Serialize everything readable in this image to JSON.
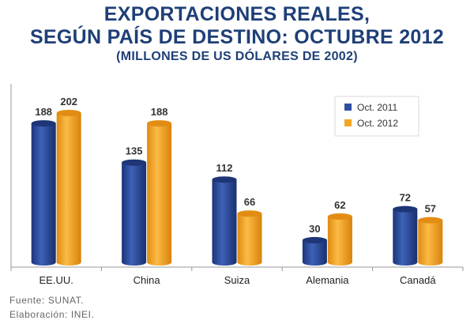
{
  "title_lines": [
    "EXPORTACIONES REALES,",
    "SEGÚN PAÍS DE DESTINO: OCTUBRE 2012"
  ],
  "subtitle": "(MILLONES DE US DÓLARES DE 2002)",
  "footnotes": {
    "source": "Fuente: SUNAT.",
    "prepared_by": "Elaboración: INEI."
  },
  "colors": {
    "title": "#1e3f77",
    "series_2011": "#2f4fa0",
    "series_2012": "#f4a621",
    "axis": "#999999"
  },
  "chart_data": {
    "type": "bar",
    "title": "EXPORTACIONES REALES, SEGÚN PAÍS DE DESTINO: OCTUBRE 2012",
    "subtitle": "(MILLONES DE US DÓLARES DE 2002)",
    "categories": [
      "EE.UU.",
      "China",
      "Suiza",
      "Alemania",
      "Canadá"
    ],
    "series": [
      {
        "name": "Oct. 2011",
        "values": [
          188,
          135,
          112,
          30,
          72
        ],
        "color": "#2f4fa0"
      },
      {
        "name": "Oct. 2012",
        "values": [
          202,
          188,
          66,
          62,
          57
        ],
        "color": "#f4a621"
      }
    ],
    "xlabel": "",
    "ylabel": "",
    "ylim": [
      0,
      202
    ],
    "grid": false,
    "legend_position": "top-right",
    "style": "3d-cylinder",
    "data_labels": true
  }
}
